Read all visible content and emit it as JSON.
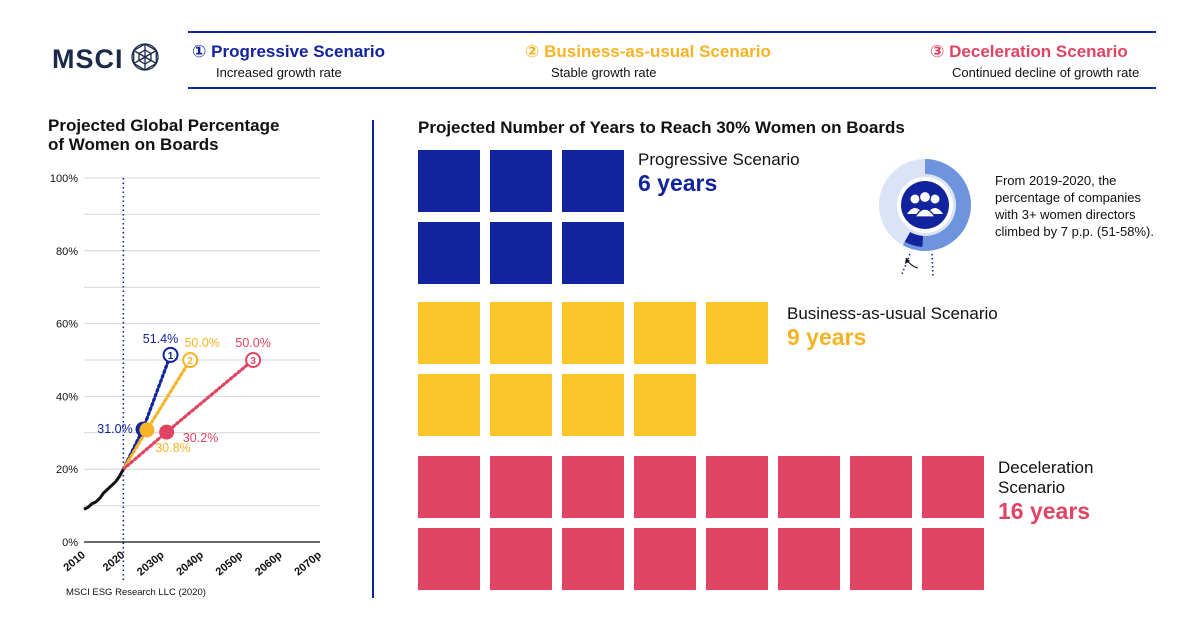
{
  "brand": {
    "logo_text": "MSCI"
  },
  "scenarios": [
    {
      "num": "①",
      "title": "Progressive Scenario",
      "subtitle": "Increased growth rate",
      "color": "#12239e"
    },
    {
      "num": "②",
      "title": "Business-as-usual Scenario",
      "subtitle": "Stable growth rate",
      "color": "#f6b324"
    },
    {
      "num": "③",
      "title": "Deceleration Scenario",
      "subtitle": "Continued decline of growth rate",
      "color": "#e04463"
    }
  ],
  "left_chart": {
    "title_line1": "Projected Global Percentage",
    "title_line2": "of Women on Boards"
  },
  "chart_data": {
    "type": "line",
    "y_tick_labels": [
      "0%",
      "20%",
      "40%",
      "60%",
      "80%",
      "100%"
    ],
    "x_tick_labels": [
      "2010",
      "2020",
      "2030p",
      "2040p",
      "2050p",
      "2060p",
      "2070p"
    ],
    "ylim": [
      0,
      100
    ],
    "xlim": [
      2010,
      2070
    ],
    "reference_year": 2020,
    "grid": true,
    "historical": {
      "x": [
        2010,
        2011,
        2012,
        2013,
        2014,
        2015,
        2016,
        2017,
        2018,
        2019,
        2020
      ],
      "y": [
        9.0,
        9.5,
        10.5,
        11.0,
        12.0,
        13.5,
        14.5,
        15.5,
        16.5,
        18.0,
        20.0
      ]
    },
    "series": [
      {
        "marker_label": "1",
        "color": "#12239e",
        "x": [
          2020,
          2025,
          2032
        ],
        "y": [
          20.0,
          31.0,
          51.4
        ],
        "labels": [
          "",
          "31.0%",
          "51.4%"
        ],
        "start_x": 2025,
        "start_y": 31.0,
        "end_x": 2032,
        "end_y": 51.4
      },
      {
        "marker_label": "2",
        "color": "#f6b324",
        "x": [
          2020,
          2026,
          2037
        ],
        "y": [
          20.0,
          30.8,
          50.0
        ],
        "labels": [
          "",
          "30.8%",
          "50.0%"
        ],
        "start_x": 2026,
        "start_y": 30.8,
        "end_x": 2037,
        "end_y": 50.0
      },
      {
        "marker_label": "3",
        "color": "#e04463",
        "x": [
          2020,
          2031,
          2053
        ],
        "y": [
          20.0,
          30.2,
          50.0
        ],
        "labels": [
          "",
          "30.2%",
          "50.0%"
        ],
        "start_x": 2031,
        "start_y": 30.2,
        "end_x": 2053,
        "end_y": 50.0
      }
    ]
  },
  "right_chart": {
    "title": "Projected Number of Years to Reach 30% Women on Boards",
    "rows": [
      {
        "label_line1": "Progressive Scenario",
        "label_line2": "",
        "value_text": "6 years",
        "years": 6,
        "color": "#12239e"
      },
      {
        "label_line1": "Business-as-usual Scenario",
        "label_line2": "",
        "value_text": "9 years",
        "years": 9,
        "color": "#fcc52a"
      },
      {
        "label_line1": "Deceleration",
        "label_line2": "Scenario",
        "value_text": "16 years",
        "years": 16,
        "color": "#e04463"
      }
    ]
  },
  "donut_note": {
    "text": "From 2019-2020, the percentage of companies with 3+ women directors climbed by 7 p.p. (51-58%).",
    "from_fraction": 0.51,
    "to_fraction": 0.58,
    "icon": "people-group-icon"
  },
  "source": "MSCI ESG Research LLC (2020)"
}
